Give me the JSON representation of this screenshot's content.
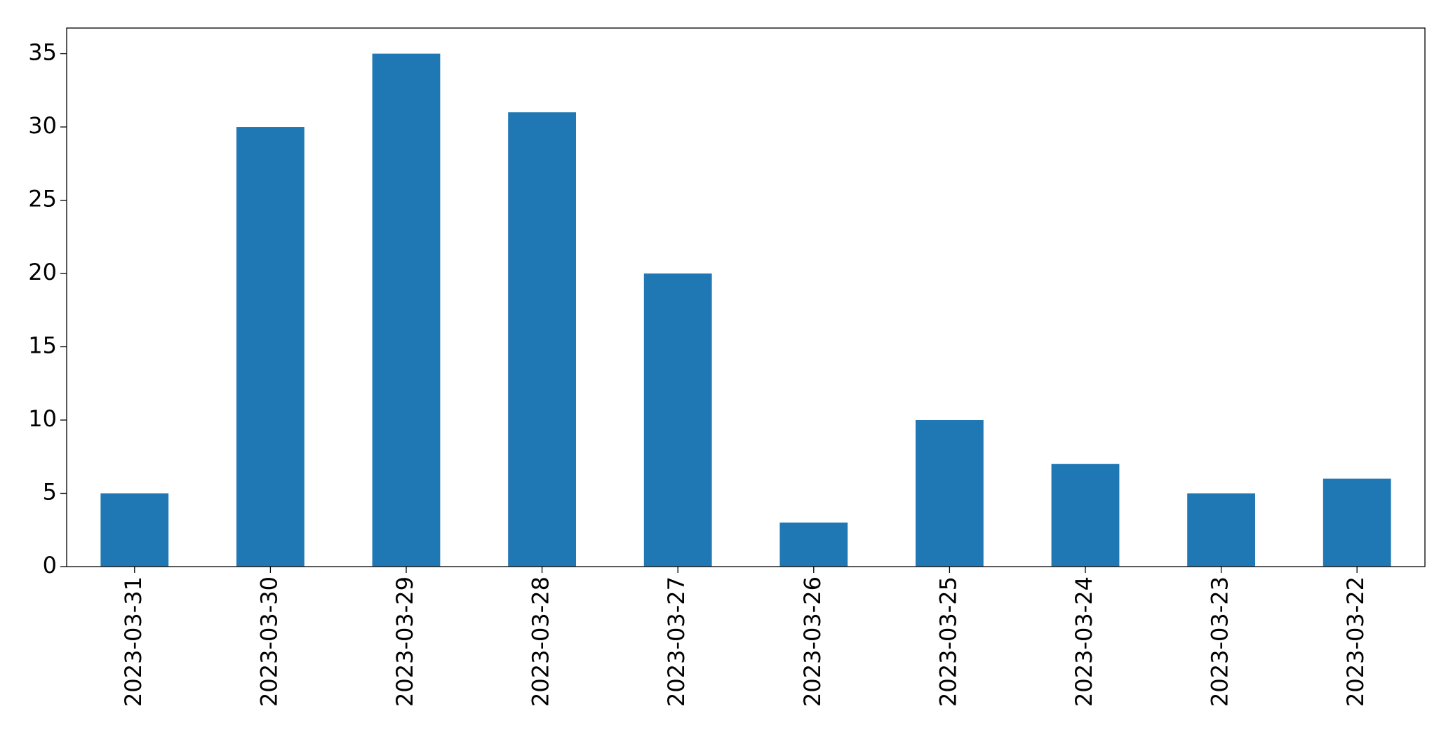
{
  "chart_data": {
    "type": "bar",
    "categories": [
      "2023-03-31",
      "2023-03-30",
      "2023-03-29",
      "2023-03-28",
      "2023-03-27",
      "2023-03-26",
      "2023-03-25",
      "2023-03-24",
      "2023-03-23",
      "2023-03-22"
    ],
    "values": [
      5,
      30,
      35,
      31,
      20,
      3,
      10,
      7,
      5,
      6
    ],
    "color": "#1f77b4",
    "ylim": [
      0,
      36.75
    ],
    "yticks": [
      0,
      5,
      10,
      15,
      20,
      25,
      30,
      35
    ],
    "grid": false
  }
}
